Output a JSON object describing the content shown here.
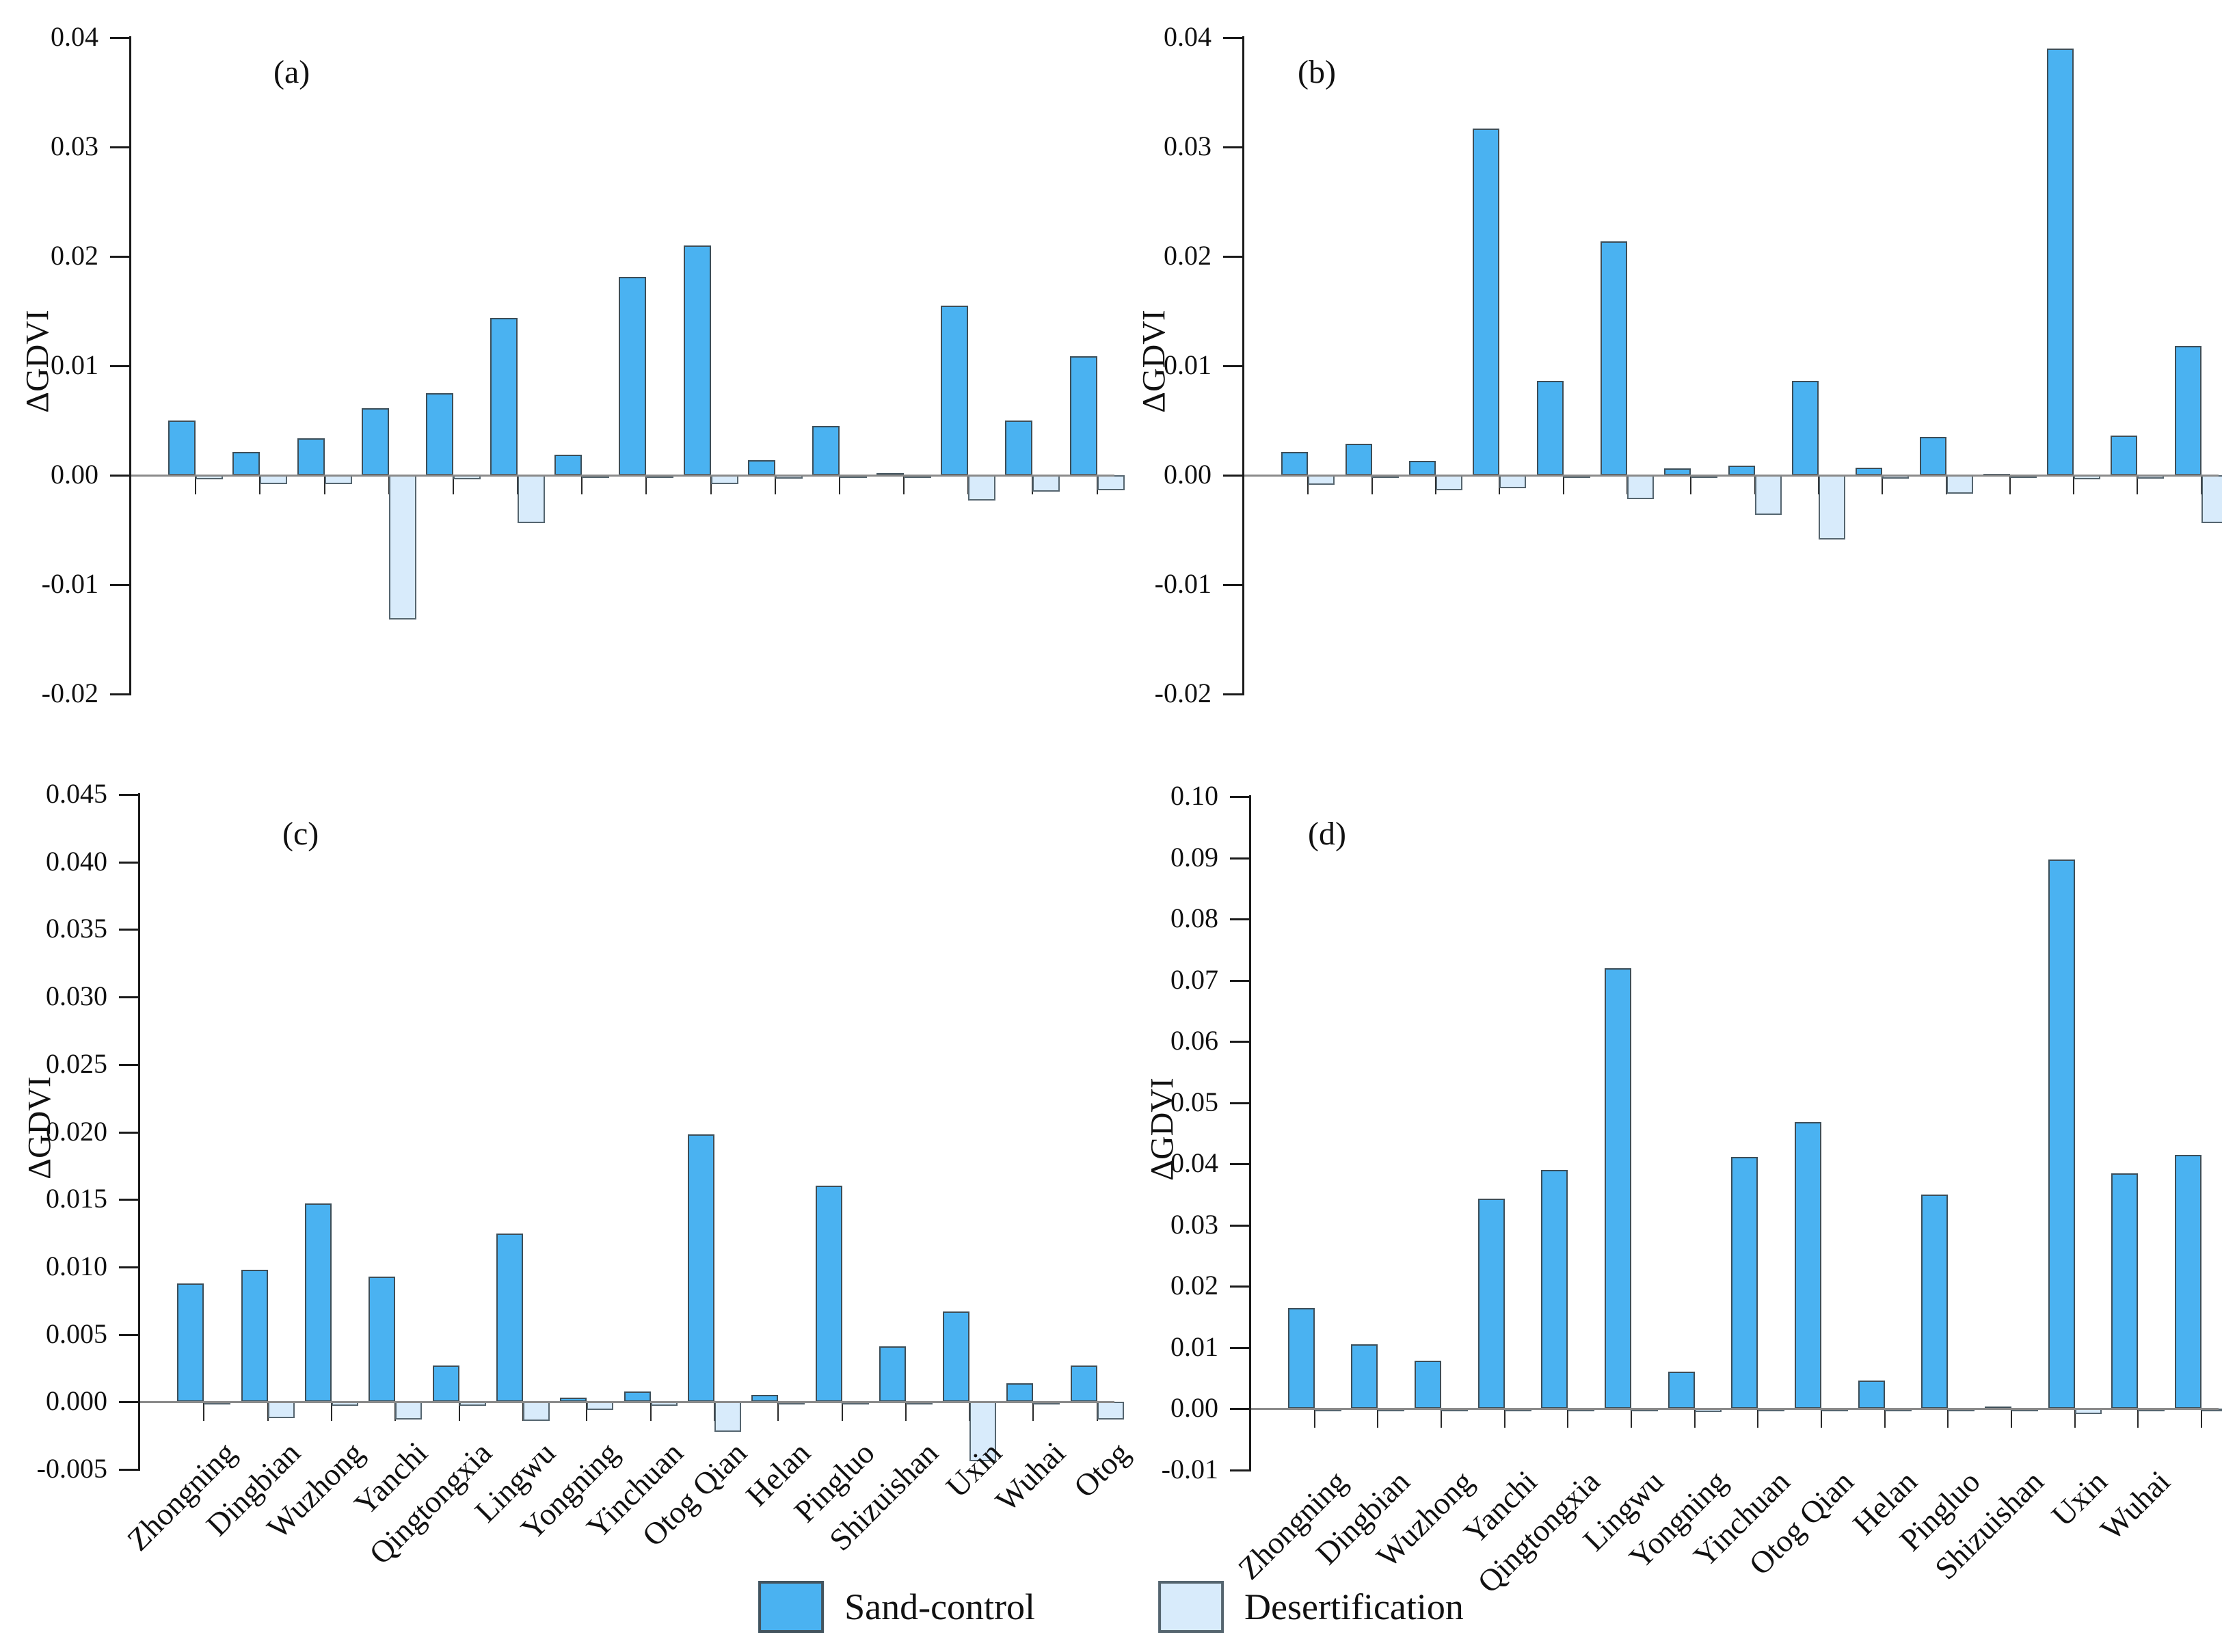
{
  "figure": {
    "legend": [
      {
        "name": "sand-control",
        "label": "Sand-control",
        "color": "#4AB2F1",
        "border": "#44545E"
      },
      {
        "name": "desertification",
        "label": "Desertification",
        "color": "#D8EBFB",
        "border": "#55656F"
      }
    ],
    "legend_position": "bottom"
  },
  "chart_data": {
    "type": "bar",
    "title": "",
    "categories": [
      "Zhongning",
      "Dingbian",
      "Wuzhong",
      "Yanchi",
      "Qingtongxia",
      "Lingwu",
      "Yongning",
      "Yinchuan",
      "Otog Qian",
      "Helan",
      "Pingluo",
      "Shizuishan",
      "Uxin",
      "Wuhai",
      "Otog"
    ],
    "series_names": [
      "Sand-control",
      "Desertification"
    ],
    "colors": {
      "sand_fill": "#4AB2F1",
      "desert_fill": "#D8EBFB",
      "bar_border": "#3D4E58",
      "zero_line": "#8A8A8A",
      "axis": "#1A1A1A"
    },
    "grid": false,
    "panels": [
      {
        "panel": "a",
        "tag": "(a)",
        "ylabel": "ΔGDVI",
        "ylim": [
          -0.02,
          0.04
        ],
        "ytick_step": 0.01,
        "ytick_labels": [
          "0.04",
          "0.03",
          "0.02",
          "0.01",
          "0.00",
          "-0.01",
          "-0.02"
        ],
        "x_tick_labels_visible": 0,
        "series": [
          {
            "name": "Sand-control",
            "values": [
              0.005,
              0.0021,
              0.0034,
              0.0061,
              0.0075,
              0.0144,
              0.0019,
              0.0181,
              0.021,
              0.0014,
              0.0045,
              0.0002,
              0.0155,
              0.005,
              0.0109
            ]
          },
          {
            "name": "Desertification",
            "values": [
              -0.0004,
              -0.0008,
              -0.0008,
              -0.0132,
              -0.0004,
              -0.0044,
              -0.0001,
              -0.0001,
              -0.0008,
              -0.0003,
              -0.0002,
              -0.0001,
              -0.0023,
              -0.0015,
              -0.0014
            ]
          }
        ]
      },
      {
        "panel": "b",
        "tag": "(b)",
        "ylabel": "ΔGDVI",
        "ylim": [
          -0.02,
          0.04
        ],
        "ytick_step": 0.01,
        "ytick_labels": [
          "0.04",
          "0.03",
          "0.02",
          "0.01",
          "0.00",
          "-0.01",
          "-0.02"
        ],
        "x_tick_labels_visible": 0,
        "series": [
          {
            "name": "Sand-control",
            "values": [
              0.0021,
              0.0029,
              0.0013,
              0.0317,
              0.0086,
              0.0214,
              0.0006,
              0.0009,
              0.0086,
              0.0007,
              0.0035,
              0.0001,
              0.039,
              0.0036,
              0.0118
            ]
          },
          {
            "name": "Desertification",
            "values": [
              -0.0009,
              -0.0002,
              -0.0014,
              -0.0012,
              -0.0002,
              -0.0022,
              -0.0001,
              -0.0036,
              -0.0059,
              -0.0003,
              -0.0017,
              -0.0001,
              -0.0004,
              -0.0003,
              -0.0044
            ]
          }
        ]
      },
      {
        "panel": "c",
        "tag": "(c)",
        "ylabel": "ΔGDVI",
        "ylim": [
          -0.005,
          0.045
        ],
        "ytick_step": 0.005,
        "ytick_labels": [
          "0.045",
          "0.040",
          "0.035",
          "0.030",
          "0.025",
          "0.020",
          "0.015",
          "0.010",
          "0.005",
          "0.000",
          "-0.005"
        ],
        "x_tick_labels_visible": 15,
        "series": [
          {
            "name": "Sand-control",
            "values": [
              0.0088,
              0.0098,
              0.0147,
              0.0093,
              0.0027,
              0.0125,
              0.0003,
              0.0008,
              0.0198,
              0.0005,
              0.016,
              0.0041,
              0.0067,
              0.0014,
              0.0027
            ]
          },
          {
            "name": "Desertification",
            "values": [
              -0.0001,
              -0.0012,
              -0.0003,
              -0.0013,
              -0.0003,
              -0.0014,
              -0.0006,
              -0.0003,
              -0.0022,
              -0.0001,
              -0.0001,
              -0.0001,
              -0.0044,
              -0.0001,
              -0.0013
            ]
          }
        ]
      },
      {
        "panel": "d",
        "tag": "(d)",
        "ylabel": "ΔGDVI",
        "ylim": [
          -0.01,
          0.1
        ],
        "ytick_step": 0.01,
        "ytick_labels": [
          "0.10",
          "0.09",
          "0.08",
          "0.07",
          "0.06",
          "0.05",
          "0.04",
          "0.03",
          "0.02",
          "0.01",
          "0.00",
          "-0.01"
        ],
        "x_tick_labels_visible": 14,
        "series": [
          {
            "name": "Sand-control",
            "values": [
              0.0165,
              0.0105,
              0.0079,
              0.0343,
              0.039,
              0.072,
              0.0061,
              0.0411,
              0.0468,
              0.0046,
              0.035,
              0.0004,
              0.0897,
              0.0385,
              0.0415
            ]
          },
          {
            "name": "Desertification",
            "values": [
              -0.0001,
              -0.0001,
              -0.0001,
              -0.0001,
              -0.0001,
              -0.0001,
              -0.0005,
              -0.0002,
              -0.0001,
              -0.0001,
              -0.0001,
              -0.0001,
              -0.0008,
              -0.0001,
              -0.0001
            ]
          }
        ]
      }
    ]
  }
}
